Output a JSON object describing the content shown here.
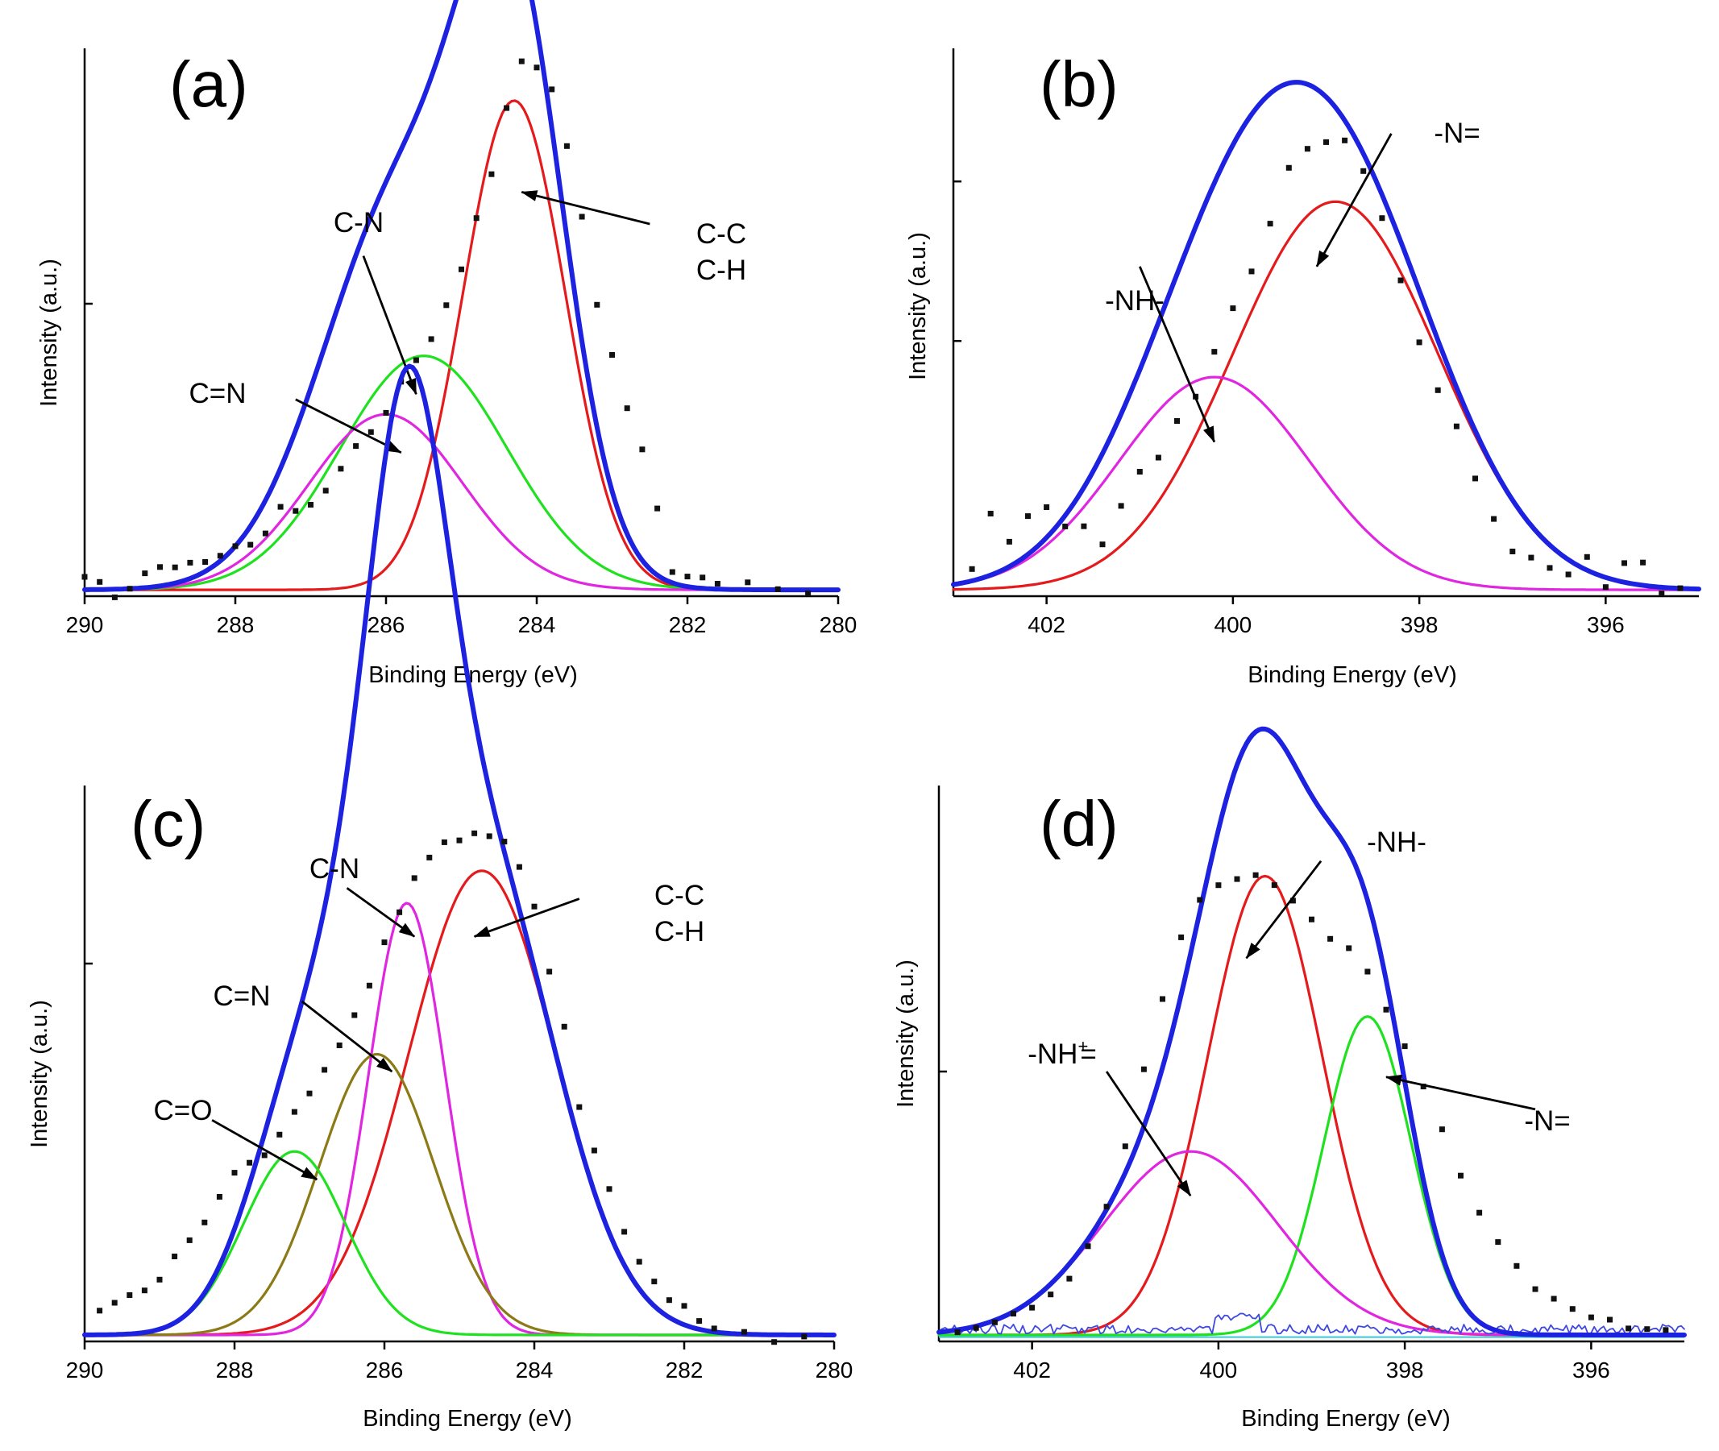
{
  "chart_data": [
    {
      "panel": "(a)",
      "type": "line",
      "xlabel": "Binding Energy (eV)",
      "ylabel": "Intensity (a.u.)",
      "xlim": [
        290,
        280
      ],
      "ylim": [
        0,
        1.0
      ],
      "x_reversed": true,
      "xticks": [
        290,
        288,
        286,
        284,
        282,
        280
      ],
      "yticks": [
        0.55
      ],
      "grid": false,
      "points": {
        "noise_seed": 11,
        "noise_scale": 0.014,
        "x": [
          290,
          289.8,
          289.6,
          289.4,
          289.2,
          289.0,
          288.8,
          288.6,
          288.4,
          288.2,
          288.0,
          287.8,
          287.6,
          287.4,
          287.2,
          287.0,
          286.8,
          286.6,
          286.4,
          286.2,
          286.0,
          285.8,
          285.6,
          285.4,
          285.2,
          285.0,
          284.8,
          284.6,
          284.4,
          284.2,
          284.0,
          283.8,
          283.6,
          283.4,
          283.2,
          283.0,
          282.8,
          282.6,
          282.4,
          282.2,
          282.0,
          281.8,
          281.6,
          281.2,
          280.8,
          280.4
        ],
        "y": [
          0.04,
          0.03,
          0.0,
          0.02,
          0.04,
          0.05,
          0.06,
          0.06,
          0.07,
          0.08,
          0.09,
          0.1,
          0.12,
          0.17,
          0.16,
          0.17,
          0.2,
          0.24,
          0.28,
          0.31,
          0.35,
          0.4,
          0.44,
          0.49,
          0.55,
          0.62,
          0.71,
          0.8,
          0.92,
          1.0,
          0.99,
          0.95,
          0.84,
          0.72,
          0.55,
          0.45,
          0.36,
          0.28,
          0.16,
          0.05,
          0.04,
          0.03,
          0.02,
          0.02,
          0.01,
          0.01
        ]
      },
      "series": [
        {
          "name": "C-C C-H",
          "color": "#e41a1c",
          "role": "component",
          "center": 284.3,
          "height": 0.92,
          "fwhm": 1.6
        },
        {
          "name": "C-N",
          "color": "#1fe11f",
          "role": "component",
          "center": 285.5,
          "height": 0.44,
          "fwhm": 2.6
        },
        {
          "name": "C=N",
          "color": "#e026e0",
          "role": "component",
          "center": 286.0,
          "height": 0.33,
          "fwhm": 2.4
        },
        {
          "name": "envelope",
          "color": "#1d22e0",
          "role": "total"
        }
      ],
      "annotations": [
        {
          "text": [
            "C-C",
            "C-H"
          ],
          "from": [
            282.5,
            0.7
          ],
          "to": [
            284.2,
            0.76
          ]
        },
        {
          "text": [
            "C-N"
          ],
          "from": [
            286.3,
            0.64
          ],
          "to": [
            285.6,
            0.38
          ]
        },
        {
          "text": [
            "C=N"
          ],
          "from": [
            287.2,
            0.37
          ],
          "to": [
            285.8,
            0.27
          ]
        }
      ]
    },
    {
      "panel": "(b)",
      "type": "line",
      "xlabel": "Binding Energy (eV)",
      "ylabel": "Intensity (a.u.)",
      "xlim": [
        403,
        395
      ],
      "ylim": [
        0,
        1.0
      ],
      "x_reversed": true,
      "xticks": [
        402,
        400,
        398,
        396
      ],
      "yticks": [
        0.48,
        0.78
      ],
      "grid": false,
      "points": {
        "noise_seed": 23,
        "noise_scale": 0.035,
        "x": [
          402.8,
          402.6,
          402.4,
          402.2,
          402.0,
          401.8,
          401.6,
          401.4,
          401.2,
          401.0,
          400.8,
          400.6,
          400.4,
          400.2,
          400.0,
          399.8,
          399.6,
          399.4,
          399.2,
          399.0,
          398.8,
          398.6,
          398.4,
          398.2,
          398.0,
          397.8,
          397.6,
          397.4,
          397.2,
          397.0,
          396.8,
          396.6,
          396.4,
          396.2,
          396.0,
          395.8,
          395.6,
          395.4,
          395.2
        ],
        "y": [
          0.06,
          0.16,
          0.1,
          0.15,
          0.16,
          0.12,
          0.14,
          0.09,
          0.18,
          0.22,
          0.27,
          0.33,
          0.39,
          0.45,
          0.55,
          0.62,
          0.71,
          0.8,
          0.85,
          0.87,
          0.86,
          0.8,
          0.7,
          0.58,
          0.47,
          0.39,
          0.31,
          0.23,
          0.16,
          0.09,
          0.06,
          0.05,
          0.04,
          0.08,
          0.03,
          0.05,
          0.07,
          0.02,
          0.01
        ]
      },
      "series": [
        {
          "name": "-N=",
          "color": "#e41a1c",
          "role": "component",
          "center": 398.9,
          "height": 0.73,
          "fwhm": 2.6
        },
        {
          "name": "-NH-",
          "color": "#e026e0",
          "role": "component",
          "center": 400.2,
          "height": 0.4,
          "fwhm": 2.4
        },
        {
          "name": "envelope",
          "color": "#1d22e0",
          "role": "total"
        }
      ],
      "annotations": [
        {
          "text": [
            "-N="
          ],
          "from": [
            398.3,
            0.87
          ],
          "to": [
            399.1,
            0.62
          ]
        },
        {
          "text": [
            "-NH-"
          ],
          "from": [
            401.0,
            0.62
          ],
          "to": [
            400.2,
            0.29
          ]
        }
      ]
    },
    {
      "panel": "(c)",
      "type": "line",
      "xlabel": "Binding Energy (eV)",
      "ylabel": "Intensity (a.u.)",
      "xlim": [
        290,
        280
      ],
      "ylim": [
        0,
        1.0
      ],
      "x_reversed": true,
      "xticks": [
        290,
        288,
        286,
        284,
        282,
        280
      ],
      "yticks": [
        0.7
      ],
      "grid": false,
      "points": {
        "noise_seed": 37,
        "noise_scale": 0.012,
        "x": [
          289.8,
          289.6,
          289.4,
          289.2,
          289.0,
          288.8,
          288.6,
          288.4,
          288.2,
          288.0,
          287.8,
          287.6,
          287.4,
          287.2,
          287.0,
          286.8,
          286.6,
          286.4,
          286.2,
          286.0,
          285.8,
          285.6,
          285.4,
          285.2,
          285.0,
          284.8,
          284.6,
          284.4,
          284.2,
          284.0,
          283.8,
          283.6,
          283.4,
          283.2,
          283.0,
          282.8,
          282.6,
          282.4,
          282.2,
          282.0,
          281.8,
          281.6,
          281.2,
          280.8,
          280.4
        ],
        "y": [
          0.06,
          0.07,
          0.09,
          0.1,
          0.12,
          0.16,
          0.19,
          0.22,
          0.27,
          0.31,
          0.33,
          0.35,
          0.38,
          0.43,
          0.46,
          0.5,
          0.55,
          0.6,
          0.66,
          0.74,
          0.8,
          0.86,
          0.9,
          0.92,
          0.93,
          0.94,
          0.94,
          0.92,
          0.88,
          0.8,
          0.69,
          0.58,
          0.44,
          0.35,
          0.28,
          0.2,
          0.15,
          0.11,
          0.08,
          0.06,
          0.04,
          0.03,
          0.02,
          0.0,
          0.01
        ]
      },
      "series": [
        {
          "name": "C-C C-H",
          "color": "#e41a1c",
          "role": "component",
          "center": 284.7,
          "height": 0.86,
          "fwhm": 2.3
        },
        {
          "name": "C-N",
          "color": "#e026e0",
          "role": "component",
          "center": 285.7,
          "height": 0.8,
          "fwhm": 1.2
        },
        {
          "name": "C=N",
          "color": "#8b7a16",
          "role": "component",
          "center": 286.1,
          "height": 0.52,
          "fwhm": 1.8
        },
        {
          "name": "C=O",
          "color": "#1fe11f",
          "role": "component",
          "center": 287.2,
          "height": 0.34,
          "fwhm": 1.6
        },
        {
          "name": "envelope",
          "color": "#1d22e0",
          "role": "total"
        }
      ],
      "annotations": [
        {
          "text": [
            "C-C",
            "C-H"
          ],
          "from": [
            283.4,
            0.82
          ],
          "to": [
            284.8,
            0.75
          ]
        },
        {
          "text": [
            "C-N"
          ],
          "from": [
            286.5,
            0.84
          ],
          "to": [
            285.6,
            0.75
          ]
        },
        {
          "text": [
            "C=N"
          ],
          "from": [
            287.1,
            0.63
          ],
          "to": [
            285.9,
            0.5
          ]
        },
        {
          "text": [
            "C=O"
          ],
          "from": [
            288.3,
            0.41
          ],
          "to": [
            286.9,
            0.3
          ]
        }
      ]
    },
    {
      "panel": "(d)",
      "type": "line",
      "xlabel": "Binding Energy (eV)",
      "ylabel": "Intensity (a.u.)",
      "xlim": [
        403,
        395
      ],
      "ylim": [
        0,
        1.0
      ],
      "x_reversed": true,
      "xticks": [
        402,
        400,
        398,
        396
      ],
      "yticks": [
        0.5
      ],
      "grid": false,
      "points": {
        "noise_seed": 53,
        "noise_scale": 0.012,
        "x": [
          402.8,
          402.6,
          402.4,
          402.2,
          402.0,
          401.8,
          401.6,
          401.4,
          401.2,
          401.0,
          400.8,
          400.6,
          400.4,
          400.2,
          400.0,
          399.8,
          399.6,
          399.4,
          399.2,
          399.0,
          398.8,
          398.6,
          398.4,
          398.2,
          398.0,
          397.8,
          397.6,
          397.4,
          397.2,
          397.0,
          396.8,
          396.6,
          396.4,
          396.2,
          396.0,
          395.8,
          395.6,
          395.4,
          395.2
        ],
        "y": [
          0.02,
          0.03,
          0.04,
          0.05,
          0.06,
          0.09,
          0.12,
          0.18,
          0.25,
          0.36,
          0.5,
          0.64,
          0.75,
          0.82,
          0.85,
          0.86,
          0.86,
          0.85,
          0.82,
          0.78,
          0.75,
          0.73,
          0.68,
          0.62,
          0.55,
          0.47,
          0.39,
          0.31,
          0.24,
          0.18,
          0.14,
          0.1,
          0.08,
          0.06,
          0.05,
          0.04,
          0.03,
          0.02,
          0.02
        ]
      },
      "series": [
        {
          "name": "-NH-",
          "color": "#e41a1c",
          "role": "component",
          "center": 399.5,
          "height": 0.85,
          "fwhm": 1.45
        },
        {
          "name": "-N=",
          "color": "#1fe11f",
          "role": "component",
          "center": 398.4,
          "height": 0.59,
          "fwhm": 1.1
        },
        {
          "name": "-NH+=",
          "color": "#e026e0",
          "role": "component",
          "center": 400.3,
          "height": 0.34,
          "fwhm": 2.2
        },
        {
          "name": "residual",
          "color": "#3f48e0",
          "role": "baseline"
        },
        {
          "name": "envelope",
          "color": "#1d22e0",
          "role": "total"
        }
      ],
      "annotations": [
        {
          "text": [
            "-NH-"
          ],
          "from": [
            398.9,
            0.89
          ],
          "to": [
            399.7,
            0.71
          ]
        },
        {
          "text": [
            "-N="
          ],
          "from": [
            396.6,
            0.43
          ],
          "to": [
            398.2,
            0.49
          ]
        },
        {
          "text": [
            "-NH+="
          ],
          "from": [
            401.2,
            0.5
          ],
          "to": [
            400.3,
            0.27
          ]
        }
      ]
    }
  ]
}
